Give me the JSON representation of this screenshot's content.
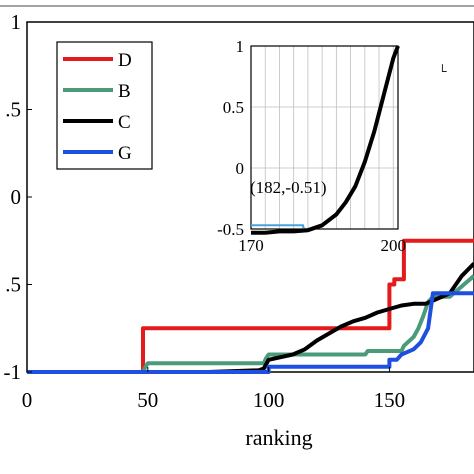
{
  "chart_data": [
    {
      "type": "line",
      "xlabel": "ranking",
      "ylabel": "",
      "xlim": [
        0,
        185
      ],
      "ylim": [
        -1,
        1
      ],
      "xticks": [
        "0",
        "50",
        "100",
        "150"
      ],
      "yticks": [
        "1",
        ".5",
        "0",
        ".5",
        "-1"
      ],
      "grid": false,
      "legend_position": "top-left",
      "series": [
        {
          "name": "D",
          "color": "#e41a1c",
          "x": [
            0,
            48,
            48,
            150,
            150,
            152,
            152,
            156,
            156,
            185
          ],
          "y": [
            -1,
            -1,
            -0.75,
            -0.75,
            -0.5,
            -0.5,
            -0.47,
            -0.47,
            -0.25,
            -0.25
          ]
        },
        {
          "name": "B",
          "color": "#4b9a7a",
          "x": [
            0,
            48,
            49,
            50,
            98,
            99,
            100,
            140,
            141,
            155,
            156,
            160,
            162,
            164,
            166,
            168,
            175,
            185
          ],
          "y": [
            -1,
            -1,
            -0.97,
            -0.95,
            -0.95,
            -0.92,
            -0.9,
            -0.9,
            -0.88,
            -0.88,
            -0.85,
            -0.8,
            -0.75,
            -0.68,
            -0.6,
            -0.57,
            -0.57,
            -0.45
          ]
        },
        {
          "name": "C",
          "color": "#000000",
          "x": [
            0,
            75,
            96,
            98,
            100,
            110,
            115,
            120,
            125,
            130,
            135,
            140,
            145,
            150,
            155,
            160,
            165,
            170,
            175,
            180,
            185
          ],
          "y": [
            -1,
            -1,
            -0.99,
            -0.98,
            -0.93,
            -0.9,
            -0.87,
            -0.82,
            -0.78,
            -0.74,
            -0.71,
            -0.69,
            -0.66,
            -0.64,
            -0.62,
            -0.61,
            -0.61,
            -0.58,
            -0.55,
            -0.45,
            -0.38
          ]
        },
        {
          "name": "G",
          "color": "#1f4fe0",
          "x": [
            0,
            100,
            100,
            150,
            150,
            153,
            155,
            160,
            163,
            166,
            168,
            185
          ],
          "y": [
            -1,
            -1,
            -0.97,
            -0.97,
            -0.93,
            -0.93,
            -0.9,
            -0.87,
            -0.83,
            -0.75,
            -0.55,
            -0.55
          ]
        }
      ]
    },
    {
      "type": "line",
      "xlim": [
        170,
        201
      ],
      "ylim": [
        -0.5,
        1
      ],
      "xticks": [
        "170",
        "200"
      ],
      "yticks": [
        "1",
        "0.5",
        "0",
        "-0.5"
      ],
      "grid": true,
      "annotation": "(182,-0.51)",
      "series": [
        {
          "color": "#4aa3d8",
          "x": [
            170,
            181,
            181,
            182
          ],
          "y": [
            -0.47,
            -0.47,
            -0.49,
            -0.51
          ]
        },
        {
          "color": "#000000",
          "x": [
            170,
            173,
            176,
            179,
            182,
            185,
            188,
            190,
            192,
            194,
            196,
            198,
            200,
            201
          ],
          "y": [
            -0.53,
            -0.53,
            -0.52,
            -0.52,
            -0.51,
            -0.47,
            -0.38,
            -0.28,
            -0.15,
            0.05,
            0.3,
            0.6,
            0.9,
            1
          ]
        }
      ]
    }
  ],
  "legend": [
    {
      "label": "D",
      "color": "#e41a1c"
    },
    {
      "label": "B",
      "color": "#4b9a7a"
    },
    {
      "label": "C",
      "color": "#000000"
    },
    {
      "label": "G",
      "color": "#1f4fe0"
    }
  ],
  "stray_mark": "└"
}
